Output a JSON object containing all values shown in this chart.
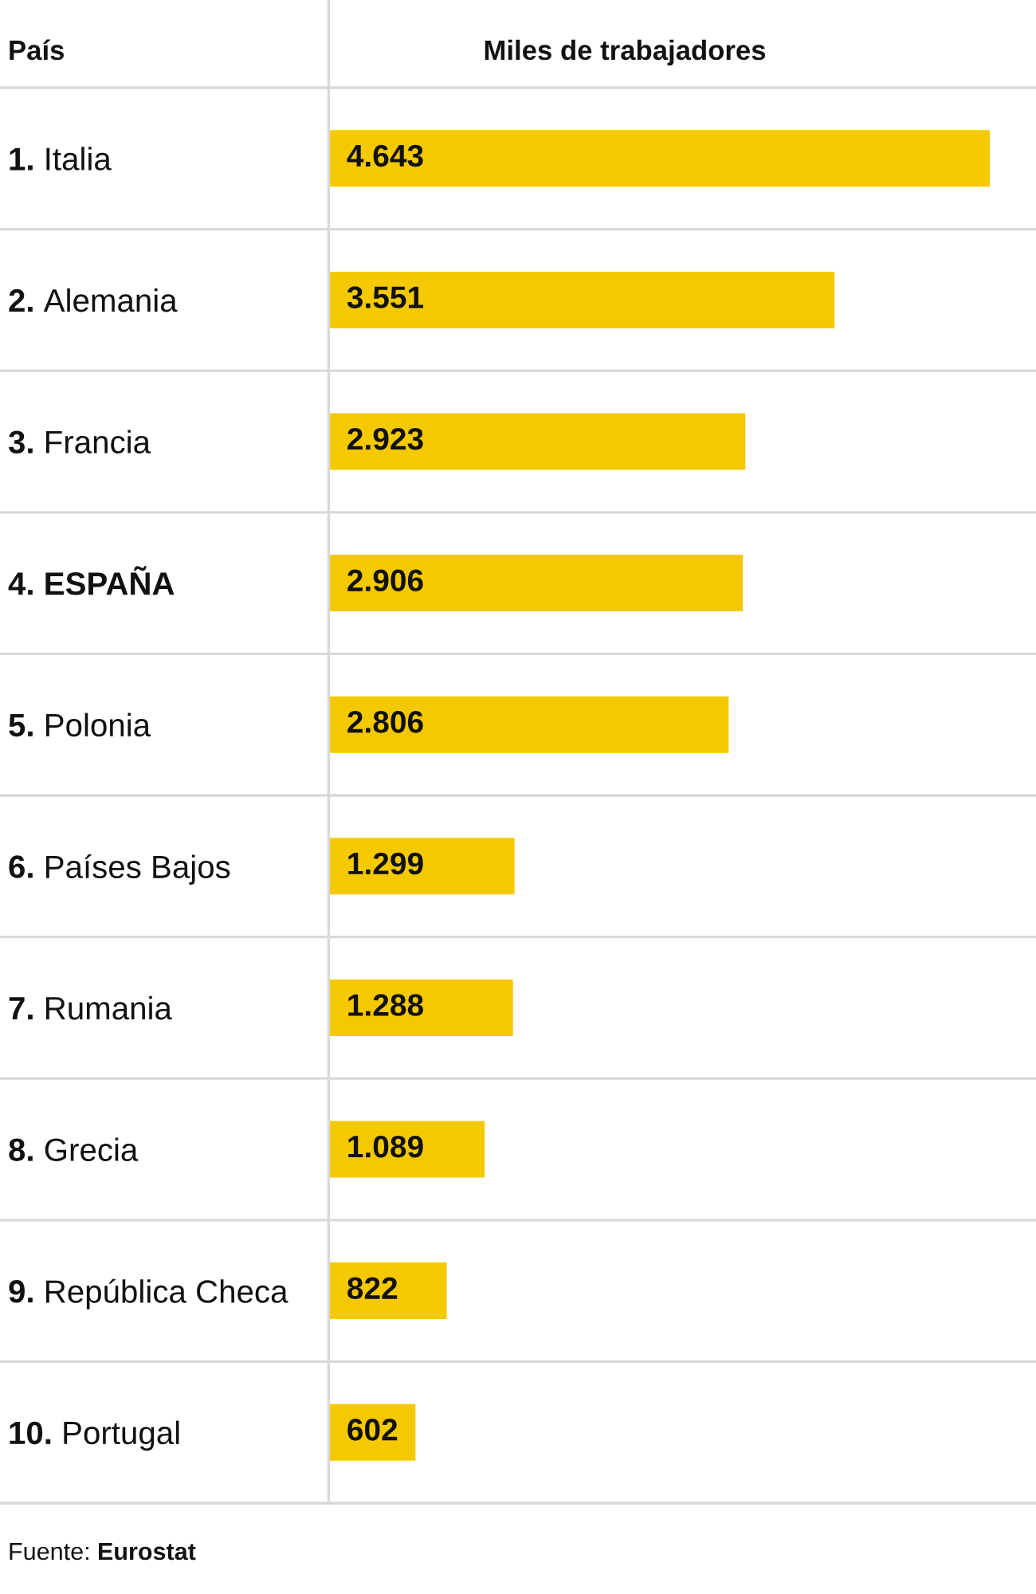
{
  "chart_data": {
    "type": "bar",
    "orientation": "horizontal",
    "ylabel": "País",
    "xlabel": "Miles de trabajadores",
    "categories": [
      "1. Italia",
      "2. Alemania",
      "3. Francia",
      "4. ESPAÑA",
      "5. Polonia",
      "6. Países Bajos",
      "7. Rumania",
      "8. Grecia",
      "9. República Checa",
      "10. Portugal"
    ],
    "values": [
      4643,
      3551,
      2923,
      2906,
      2806,
      1299,
      1288,
      1089,
      822,
      602
    ],
    "value_labels": [
      "4.643",
      "3.551",
      "2.923",
      "2.906",
      "2.806",
      "1.299",
      "1.288",
      "1.089",
      "822",
      "602"
    ],
    "color": "#f5c900",
    "grid": "y",
    "annotations": [
      "Fuente: Eurostat"
    ]
  }
}
